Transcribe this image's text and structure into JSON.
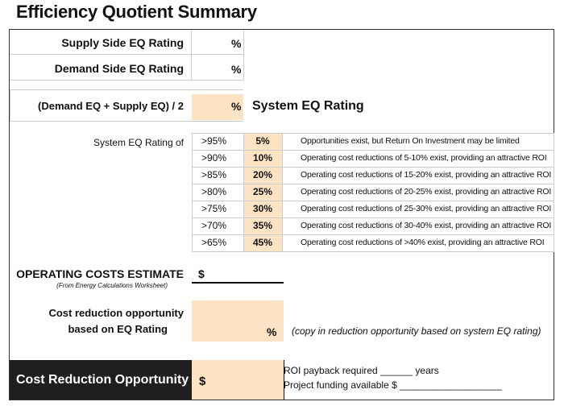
{
  "title": "Efficiency Quotient Summary",
  "supply": {
    "label": "Supply Side EQ Rating",
    "unit": "%"
  },
  "demand": {
    "label": "Demand Side EQ Rating",
    "unit": "%"
  },
  "formula": {
    "label": "(Demand EQ + Supply EQ) / 2",
    "unit": "%",
    "result_label": "System EQ Rating"
  },
  "ratings_table": {
    "label": "System EQ Rating of",
    "rows": [
      {
        "rating": ">95%",
        "pct": "5%",
        "desc": "Opportunities exist, but Return On Investment may be limited"
      },
      {
        "rating": ">90%",
        "pct": "10%",
        "desc": "Operating cost reductions of 5-10% exist, providing an attractive ROI"
      },
      {
        "rating": ">85%",
        "pct": "20%",
        "desc": "Operating cost reductions of 15-20% exist, providing an attractive ROI"
      },
      {
        "rating": ">80%",
        "pct": "25%",
        "desc": "Operating cost reductions of 20-25% exist, providing an attractive ROI"
      },
      {
        "rating": ">75%",
        "pct": "30%",
        "desc": "Operating cost reductions of 25-30% exist, providing an attractive ROI"
      },
      {
        "rating": ">70%",
        "pct": "35%",
        "desc": "Operating cost reductions of 30-40% exist, providing an attractive ROI"
      },
      {
        "rating": ">65%",
        "pct": "45%",
        "desc": "Operating cost reductions of >40% exist, providing an attractive ROI"
      }
    ]
  },
  "operating": {
    "label": "OPERATING COSTS ESTIMATE",
    "sub": "(From Energy Calculations Worksheet)",
    "unit": "$"
  },
  "cost_reduction": {
    "label_line1": "Cost reduction opportunity",
    "label_line2": "based on EQ Rating",
    "unit": "%",
    "note": "(copy in reduction opportunity based on system EQ rating)"
  },
  "bottom": {
    "label": "Cost Reduction Opportunity",
    "unit": "$",
    "roi_line": "ROI payback required ______ years",
    "funding_line": "Project funding available $ ___________________"
  },
  "colors": {
    "orange": "#fce3c4",
    "dark": "#1f1f1f"
  }
}
